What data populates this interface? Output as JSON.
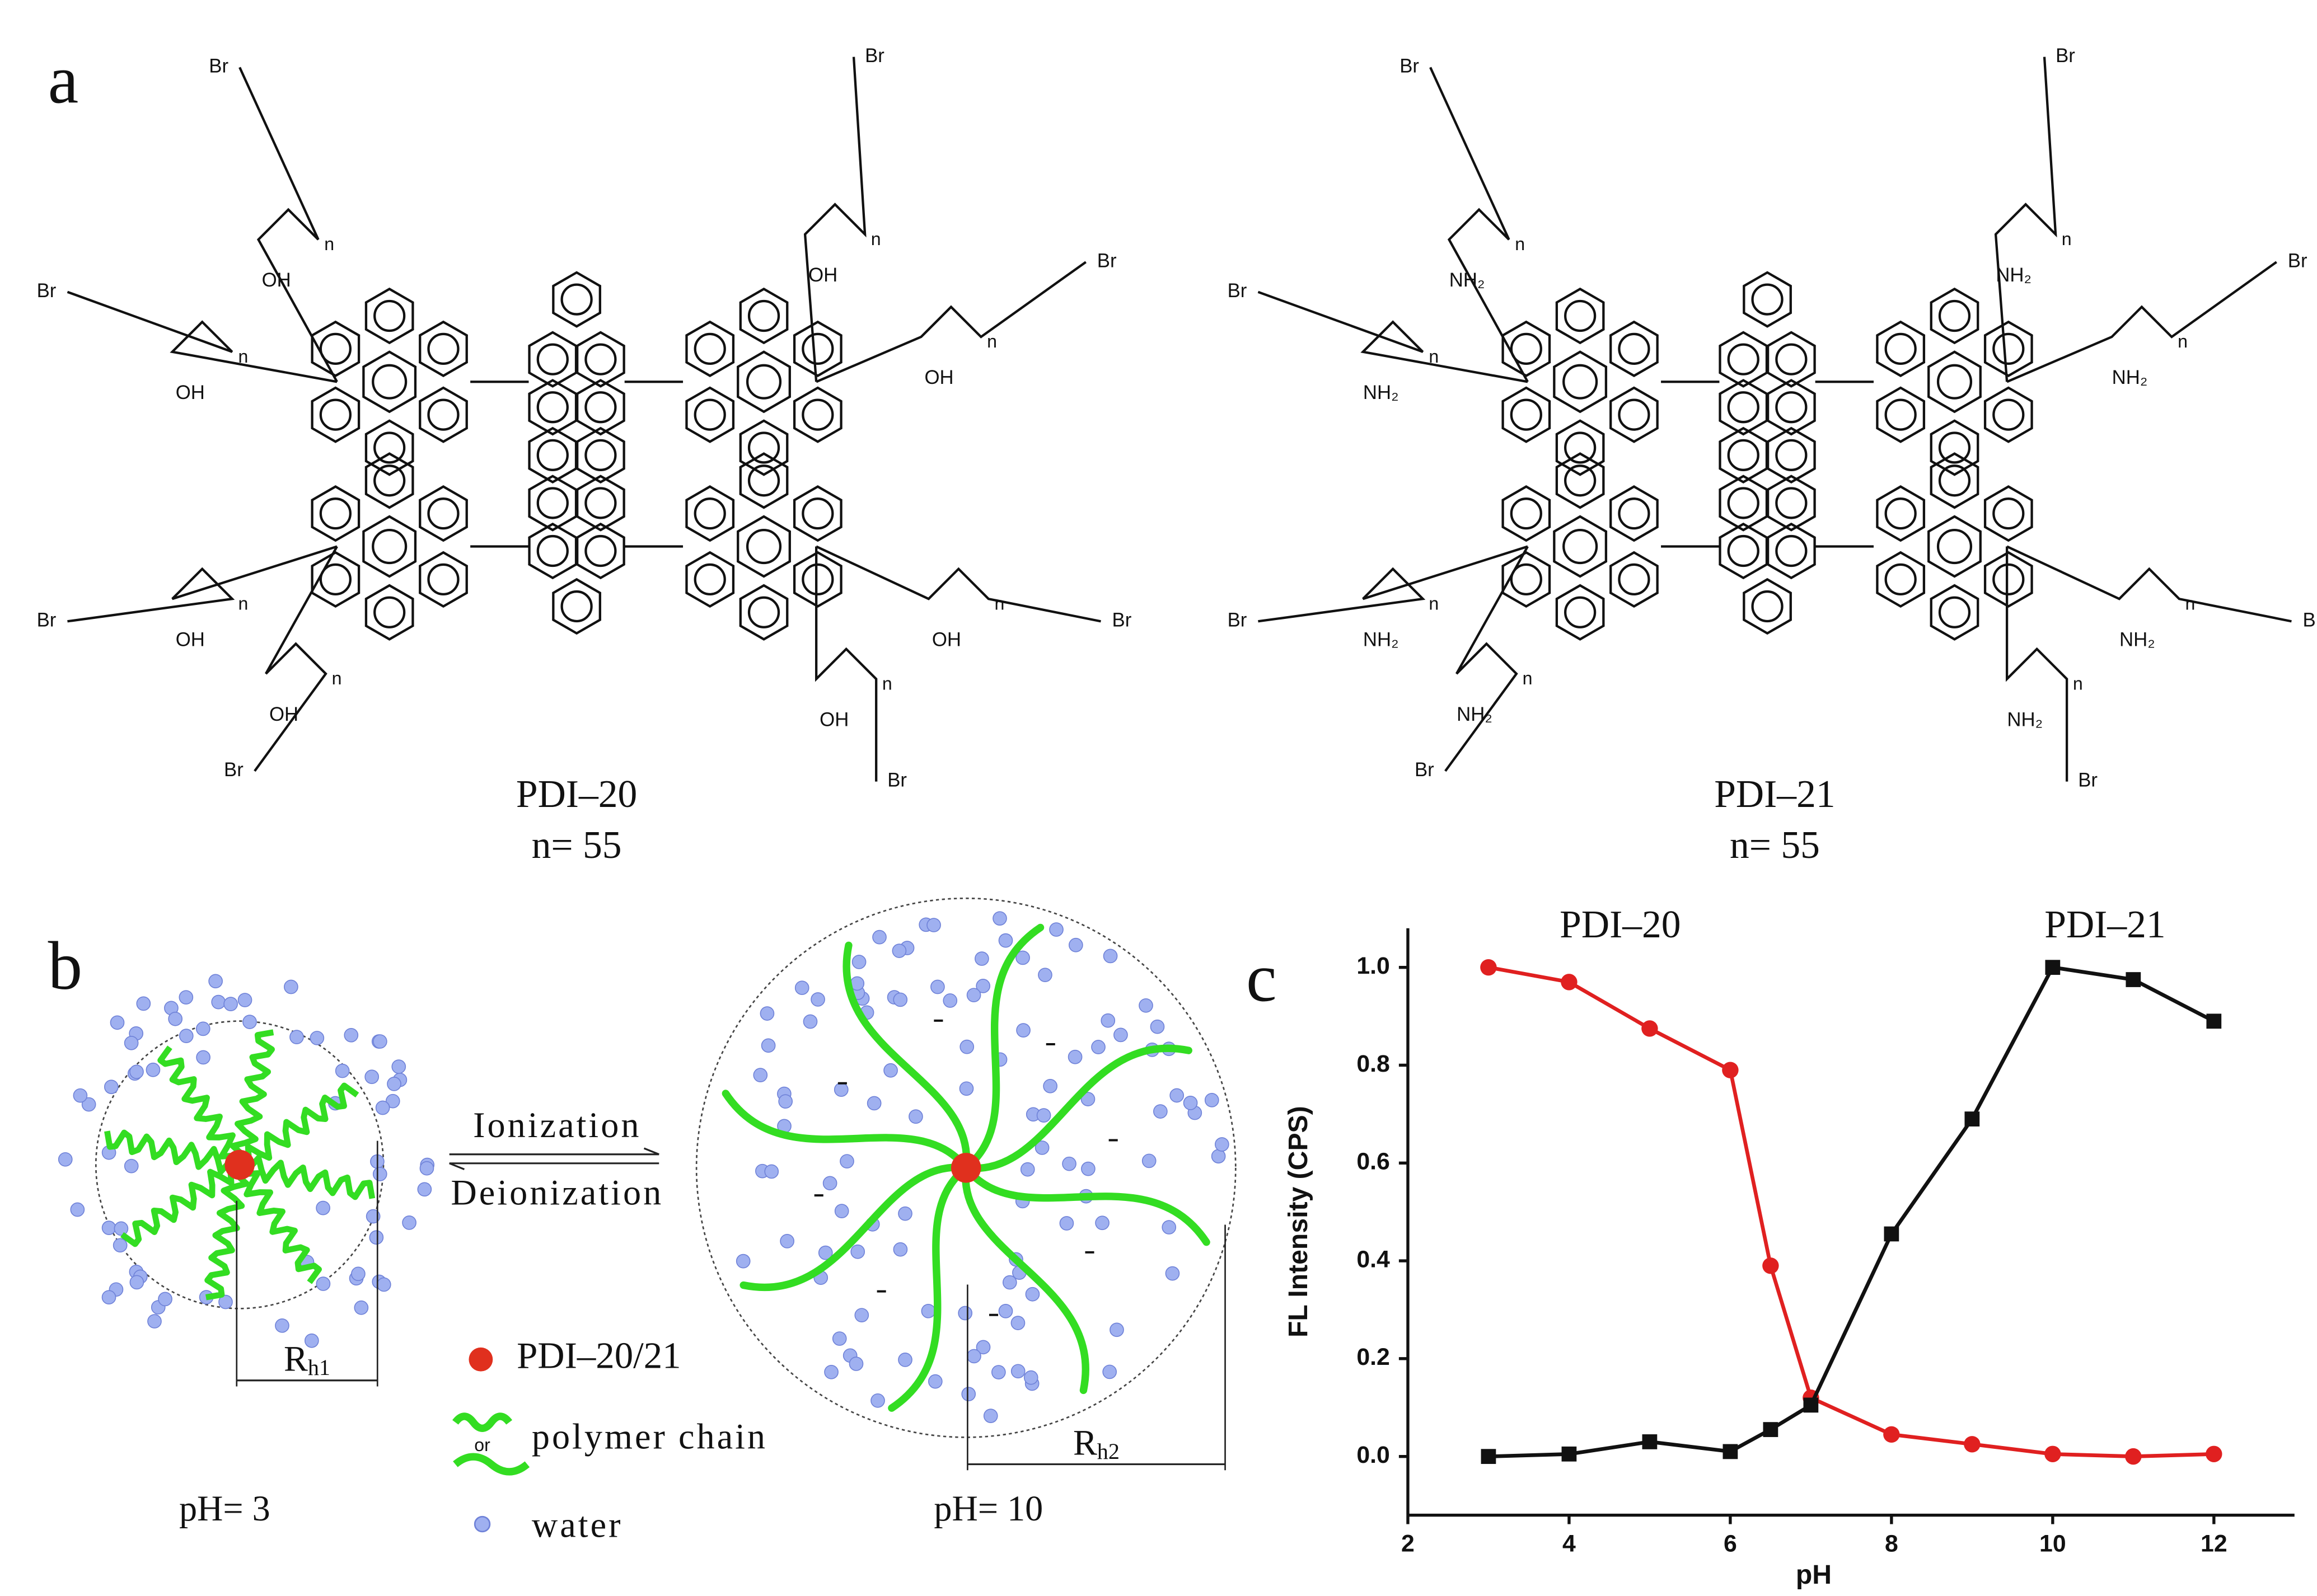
{
  "panel_a": {
    "label": "a",
    "molecules": [
      {
        "name": "PDI–20",
        "n_label": "n= 55",
        "end_group": "Br",
        "repeat": "n",
        "side_group": "OH"
      },
      {
        "name": "PDI–21",
        "n_label": "n= 55",
        "end_group": "Br",
        "repeat": "n",
        "side_group": "NH₂"
      }
    ]
  },
  "panel_b": {
    "label": "b",
    "forward": "Ionization",
    "backward": "Deionization",
    "radius_small": {
      "base": "R",
      "sub": "h1"
    },
    "radius_large": {
      "base": "R",
      "sub": "h2"
    },
    "legend": {
      "core": "PDI–20/21",
      "or": "or",
      "chain": "polymer chain",
      "water": "water"
    },
    "ph_low": "pH= 3",
    "ph_high": "pH= 10"
  },
  "panel_c_label": "c",
  "chart_data": {
    "type": "line",
    "xlabel": "pH",
    "ylabel": "FL Intensity (CPS)",
    "x": [
      3,
      4,
      5,
      6,
      6.5,
      7,
      8,
      9,
      10,
      11,
      12
    ],
    "series": [
      {
        "name": "PDI–20",
        "color": "#e02020",
        "marker": "circle",
        "values": [
          1.0,
          0.97,
          0.875,
          0.79,
          0.39,
          0.12,
          0.045,
          0.025,
          0.005,
          0.0,
          0.005
        ]
      },
      {
        "name": "PDI–21",
        "color": "#111111",
        "marker": "square",
        "values": [
          0.0,
          0.005,
          0.03,
          0.01,
          0.055,
          0.105,
          0.455,
          0.69,
          1.0,
          0.975,
          0.89
        ]
      }
    ],
    "xlim": [
      2,
      13
    ],
    "xticks": [
      2,
      4,
      6,
      8,
      10,
      12
    ],
    "ylim": [
      -0.12,
      1.08
    ],
    "yticks": [
      {
        "value": 0,
        "label": "0.0"
      },
      {
        "value": 0.2,
        "label": "0.2"
      },
      {
        "value": 0.4,
        "label": "0.4"
      },
      {
        "value": 0.6,
        "label": "0.6"
      },
      {
        "value": 0.8,
        "label": "0.8"
      },
      {
        "value": 1,
        "label": "1.0"
      }
    ]
  }
}
